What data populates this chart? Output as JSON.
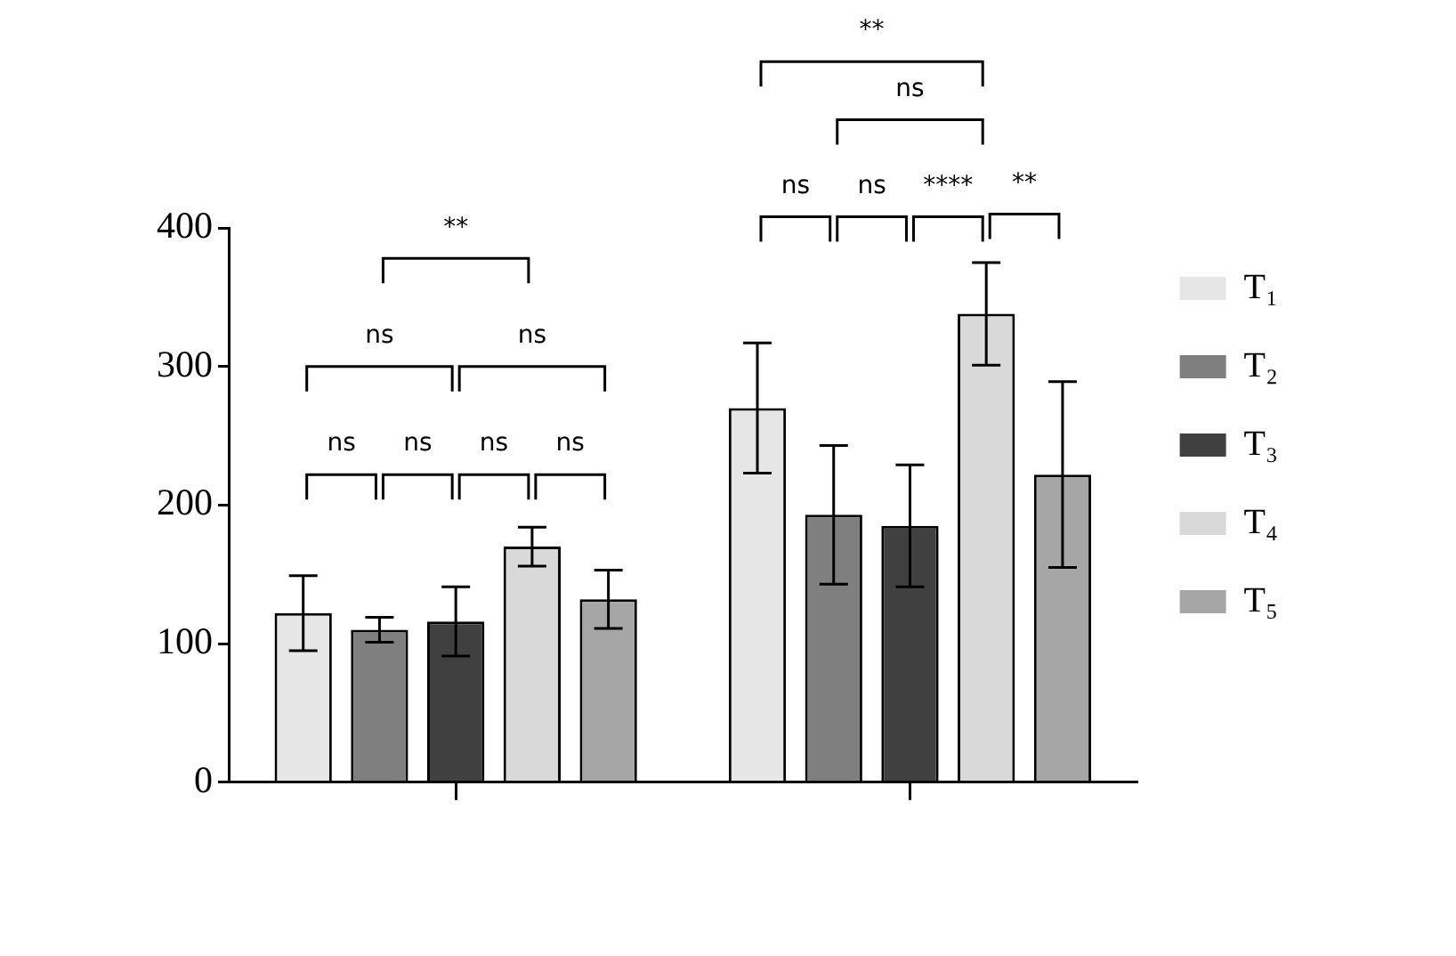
{
  "chart_data": {
    "type": "bar",
    "categories": [
      null,
      null
    ],
    "series": [
      {
        "name": "T₁",
        "color": "#e6e6e6",
        "values": [
          122,
          270
        ],
        "errors": [
          27,
          47
        ]
      },
      {
        "name": "T₂",
        "color": "#7f7f7f",
        "values": [
          110,
          193
        ],
        "errors": [
          9,
          50
        ]
      },
      {
        "name": "T₃",
        "color": "#404040",
        "values": [
          116,
          185
        ],
        "errors": [
          25,
          44
        ]
      },
      {
        "name": "T₄",
        "color": "#d9d9d9",
        "values": [
          170,
          338
        ],
        "errors": [
          14,
          37
        ]
      },
      {
        "name": "T₅",
        "color": "#a6a6a6",
        "values": [
          132,
          222
        ],
        "errors": [
          21,
          67
        ]
      }
    ],
    "ylim": [
      0,
      400
    ],
    "yticks": [
      0,
      100,
      200,
      300,
      400
    ],
    "grid": false,
    "legend": "right",
    "annotations": [
      "ns",
      "ns",
      "ns",
      "ns",
      "ns",
      "ns",
      "**",
      "ns",
      "ns",
      "****",
      "**",
      "ns",
      "**"
    ]
  }
}
